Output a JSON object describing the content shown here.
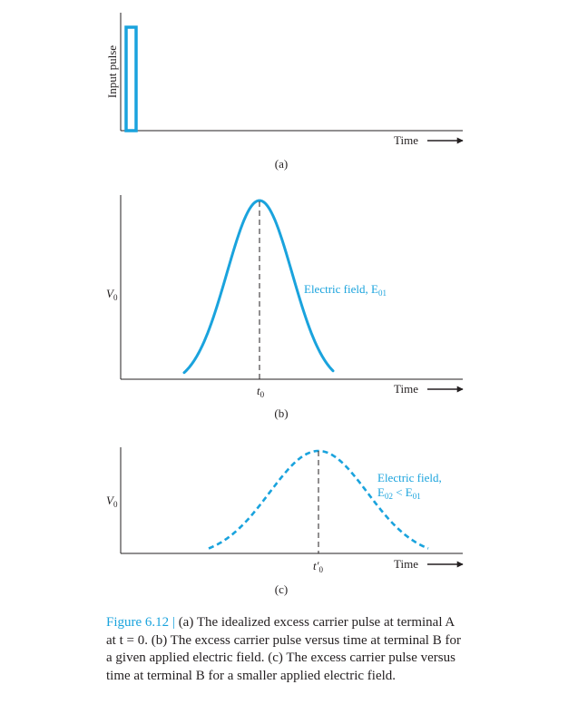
{
  "panel_a": {
    "ylabel": "Input pulse",
    "time_label": "Time",
    "tag": "(a)"
  },
  "panel_b": {
    "ylabel": "V",
    "ylabel_sub": "0",
    "time_label": "Time",
    "t_label": "t",
    "t_sub": "0",
    "curve_label": "Electric field, E",
    "curve_label_sub": "01",
    "tag": "(b)"
  },
  "panel_c": {
    "ylabel": "V",
    "ylabel_sub": "0",
    "time_label": "Time",
    "t_label": "t′",
    "t_sub": "0",
    "curve_label_line1": "Electric field,",
    "curve_label_line2_a": "E",
    "curve_label_line2_a_sub": "02",
    "curve_label_line2_b": " < E",
    "curve_label_line2_b_sub": "01",
    "tag": "(c)"
  },
  "caption": {
    "figure_number": "Figure 6.12",
    "separator": " | ",
    "text": "(a) The idealized excess carrier pulse at terminal A at t = 0. (b) The excess carrier pulse versus time at terminal B for a given applied electric field. (c) The excess carrier pulse versus time at terminal B for a smaller applied electric field."
  },
  "colors": {
    "accent": "#1aa3dd",
    "ink": "#231f20"
  }
}
